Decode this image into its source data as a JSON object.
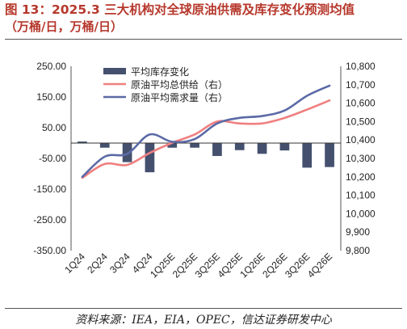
{
  "title": "图 13：2025.3 三大机构对全球原油供需及库存变化预测均值",
  "subtitle": "（万桶/日，万桶/日）",
  "source": "资料来源：IEA，EIA，OPEC，信达证券研发中心",
  "colors": {
    "bars": "#44506e",
    "supply": "#f08080",
    "demand": "#5b6aa6",
    "title": "#b6382c"
  },
  "chart_data": {
    "type": "bar+line",
    "categories": [
      "1Q24",
      "2Q24",
      "3Q24",
      "4Q24",
      "1Q25E",
      "2Q25E",
      "3Q25E",
      "4Q25E",
      "1Q26E",
      "2Q26E",
      "3Q26E",
      "4Q26E"
    ],
    "y_left": {
      "min": -350,
      "max": 250,
      "ticks": [
        250,
        150,
        50,
        -50,
        -150,
        -250,
        -350
      ],
      "tick_labels": [
        "250.00",
        "150.00",
        "50.00",
        "-50.00",
        "-150.00",
        "-250.00",
        "-350.00"
      ]
    },
    "y_right": {
      "min": 9800,
      "max": 10800,
      "ticks": [
        10800,
        10700,
        10600,
        10500,
        10400,
        10300,
        10200,
        10100,
        10000,
        9900,
        9800
      ],
      "tick_labels": [
        "10,800",
        "10,700",
        "10,600",
        "10,500",
        "10,400",
        "10,300",
        "10,200",
        "10,100",
        "10,000",
        "9,900",
        "9,800"
      ]
    },
    "legend": [
      "平均库存变化",
      "原油平均总供给（右）",
      "原油平均需求量（右）"
    ],
    "series": [
      {
        "name": "平均库存变化",
        "axis": "left",
        "kind": "bar",
        "values": [
          5,
          -15,
          -62,
          -95,
          -15,
          -15,
          -42,
          -23,
          -35,
          -24,
          -80,
          -78
        ]
      },
      {
        "name": "原油平均总供给（右）",
        "axis": "right",
        "kind": "line",
        "values": [
          10195,
          10270,
          10265,
          10330,
          10385,
          10430,
          10500,
          10490,
          10490,
          10520,
          10565,
          10615
        ]
      },
      {
        "name": "原油平均需求量（右）",
        "axis": "right",
        "kind": "line",
        "values": [
          10200,
          10310,
          10325,
          10430,
          10390,
          10405,
          10490,
          10520,
          10530,
          10560,
          10640,
          10695
        ]
      }
    ]
  }
}
